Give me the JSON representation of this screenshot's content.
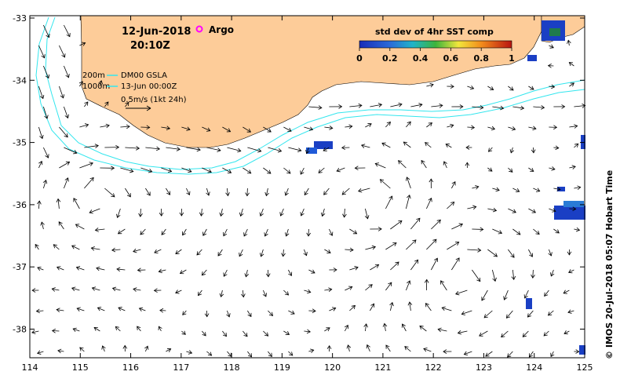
{
  "title": {
    "date": "12-Jun-2018",
    "time": "20:10Z",
    "argo_label": "Argo"
  },
  "legend": {
    "depth_200": "200m",
    "depth_1000": "1000m",
    "product": "DM00 GSLA",
    "product_time": "13-Jun 00:00Z",
    "scale_label": "0.5m/s (1kt 24h)"
  },
  "colorbar": {
    "title": "std dev of 4hr SST comp",
    "ticks": [
      "0",
      "0.2",
      "0.4",
      "0.6",
      "0.8",
      "1"
    ]
  },
  "axes": {
    "x_ticks": [
      "114",
      "115",
      "116",
      "117",
      "118",
      "119",
      "120",
      "121",
      "122",
      "123",
      "124",
      "125"
    ],
    "y_ticks": [
      "-33",
      "-34",
      "-35",
      "-36",
      "-37",
      "-38"
    ]
  },
  "credit": "© IMOS 20-Jul-2018 05:07 Hobart Time",
  "colors": {
    "land": "#fdcc99",
    "contour": "#33e6ee",
    "argo": "#ff00ff"
  }
}
